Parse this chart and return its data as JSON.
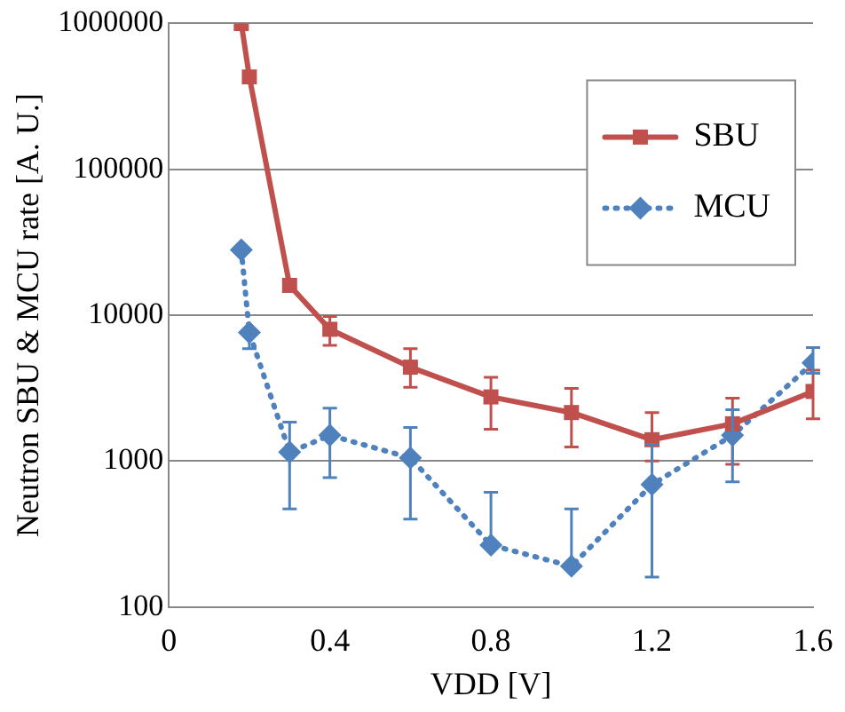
{
  "chart_data": {
    "type": "line",
    "xlabel": "VDD [V]",
    "ylabel": "Neutron SBU & MCU rate [A. U.]",
    "xlim": [
      0,
      1.6
    ],
    "xticks": [
      0,
      0.4,
      0.8,
      1.2,
      1.6
    ],
    "ylim": [
      100,
      1000000
    ],
    "yticks": [
      100,
      1000,
      10000,
      100000,
      1000000
    ],
    "log": "y",
    "grid": "y",
    "legend": "top right",
    "series": [
      {
        "name": "SBU",
        "color": "#c0504d",
        "marker": "square",
        "line_style": "solid",
        "x": [
          0.18,
          0.2,
          0.3,
          0.4,
          0.6,
          0.8,
          1.0,
          1.2,
          1.4,
          1.6
        ],
        "values": [
          1000000,
          430000,
          16000,
          8000,
          4400,
          2750,
          2150,
          1400,
          1800,
          3000
        ],
        "errors": [
          null,
          null,
          null,
          [
            6200,
            9800
          ],
          [
            3200,
            5900
          ],
          [
            1650,
            3750
          ],
          [
            1250,
            3150
          ],
          [
            1000,
            2150
          ],
          [
            950,
            2700
          ],
          [
            1950,
            4200
          ]
        ]
      },
      {
        "name": "MCU",
        "color": "#4f81bd",
        "marker": "diamond",
        "line_style": "dotted",
        "x": [
          0.18,
          0.2,
          0.3,
          0.4,
          0.6,
          0.8,
          1.0,
          1.2,
          1.4,
          1.6
        ],
        "values": [
          28000,
          7600,
          1150,
          1500,
          1050,
          265,
          190,
          690,
          1500,
          4700
        ],
        "errors": [
          null,
          [
            5900,
            7600
          ],
          [
            470,
            1850
          ],
          [
            770,
            2300
          ],
          [
            400,
            1700
          ],
          [
            265,
            610
          ],
          [
            190,
            470
          ],
          [
            160,
            1300
          ],
          [
            720,
            2250
          ],
          [
            4000,
            6000
          ]
        ]
      }
    ]
  }
}
